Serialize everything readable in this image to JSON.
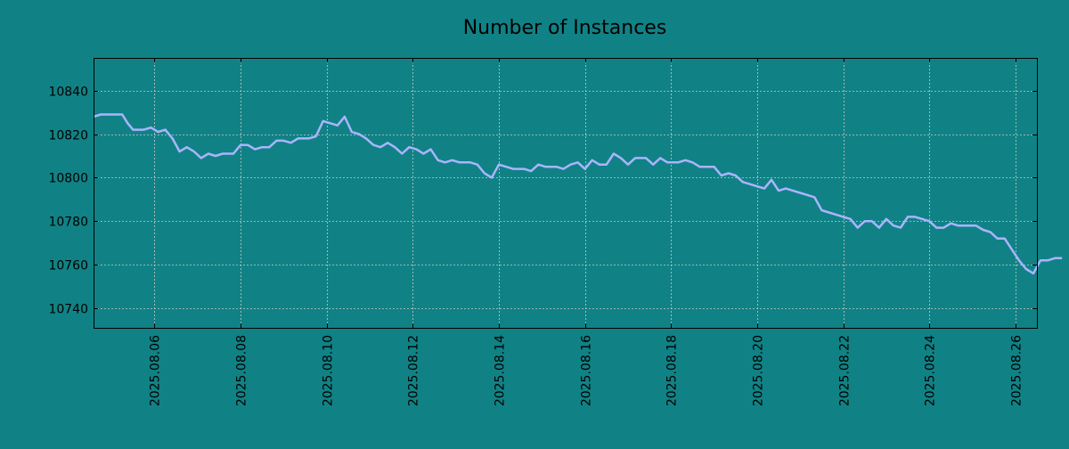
{
  "chart_data": {
    "type": "line",
    "title": "Number of Instances",
    "xlabel": "",
    "ylabel": "",
    "x_tick_labels": [
      "2025.08.06",
      "2025.08.08",
      "2025.08.10",
      "2025.08.12",
      "2025.08.14",
      "2025.08.16",
      "2025.08.18",
      "2025.08.20",
      "2025.08.22",
      "2025.08.24",
      "2025.08.26"
    ],
    "y_tick_labels": [
      "10740",
      "10760",
      "10780",
      "10800",
      "10820",
      "10840"
    ],
    "ylim": [
      10731,
      10855
    ],
    "xlim": [
      "2025.08.04 14:00",
      "2025.08.26 12:00"
    ],
    "grid": true,
    "colors": {
      "background": "#108285",
      "line": "#aab4ff",
      "grid": "#c8c8c8",
      "axis": "#000000"
    },
    "series": [
      {
        "points": [
          [
            "2025.08.04 14:00",
            10828
          ],
          [
            "2025.08.04 18:00",
            10829
          ],
          [
            "2025.08.05 00:00",
            10829
          ],
          [
            "2025.08.05 06:00",
            10829
          ],
          [
            "2025.08.05 09:00",
            10825
          ],
          [
            "2025.08.05 12:00",
            10822
          ],
          [
            "2025.08.05 18:00",
            10822
          ],
          [
            "2025.08.05 22:00",
            10823
          ],
          [
            "2025.08.06 02:00",
            10821
          ],
          [
            "2025.08.06 06:00",
            10822
          ],
          [
            "2025.08.06 10:00",
            10818
          ],
          [
            "2025.08.06 14:00",
            10812
          ],
          [
            "2025.08.06 18:00",
            10814
          ],
          [
            "2025.08.06 22:00",
            10812
          ],
          [
            "2025.08.07 02:00",
            10809
          ],
          [
            "2025.08.07 06:00",
            10811
          ],
          [
            "2025.08.07 10:00",
            10810
          ],
          [
            "2025.08.07 14:00",
            10811
          ],
          [
            "2025.08.07 20:00",
            10811
          ],
          [
            "2025.08.08 00:00",
            10815
          ],
          [
            "2025.08.08 04:00",
            10815
          ],
          [
            "2025.08.08 08:00",
            10813
          ],
          [
            "2025.08.08 12:00",
            10814
          ],
          [
            "2025.08.08 16:00",
            10814
          ],
          [
            "2025.08.08 20:00",
            10817
          ],
          [
            "2025.08.09 00:00",
            10817
          ],
          [
            "2025.08.09 04:00",
            10816
          ],
          [
            "2025.08.09 08:00",
            10818
          ],
          [
            "2025.08.09 14:00",
            10818
          ],
          [
            "2025.08.09 18:00",
            10819
          ],
          [
            "2025.08.09 22:00",
            10826
          ],
          [
            "2025.08.10 02:00",
            10825
          ],
          [
            "2025.08.10 06:00",
            10824
          ],
          [
            "2025.08.10 10:00",
            10828
          ],
          [
            "2025.08.10 14:00",
            10821
          ],
          [
            "2025.08.10 18:00",
            10820
          ],
          [
            "2025.08.10 22:00",
            10818
          ],
          [
            "2025.08.11 02:00",
            10815
          ],
          [
            "2025.08.11 06:00",
            10814
          ],
          [
            "2025.08.11 10:00",
            10816
          ],
          [
            "2025.08.11 14:00",
            10814
          ],
          [
            "2025.08.11 18:00",
            10811
          ],
          [
            "2025.08.11 22:00",
            10814
          ],
          [
            "2025.08.12 02:00",
            10813
          ],
          [
            "2025.08.12 06:00",
            10811
          ],
          [
            "2025.08.12 10:00",
            10813
          ],
          [
            "2025.08.12 14:00",
            10808
          ],
          [
            "2025.08.12 18:00",
            10807
          ],
          [
            "2025.08.12 22:00",
            10808
          ],
          [
            "2025.08.13 02:00",
            10807
          ],
          [
            "2025.08.13 08:00",
            10807
          ],
          [
            "2025.08.13 12:00",
            10806
          ],
          [
            "2025.08.13 16:00",
            10802
          ],
          [
            "2025.08.13 20:00",
            10800
          ],
          [
            "2025.08.14 00:00",
            10806
          ],
          [
            "2025.08.14 04:00",
            10805
          ],
          [
            "2025.08.14 08:00",
            10804
          ],
          [
            "2025.08.14 14:00",
            10804
          ],
          [
            "2025.08.14 18:00",
            10803
          ],
          [
            "2025.08.14 22:00",
            10806
          ],
          [
            "2025.08.15 02:00",
            10805
          ],
          [
            "2025.08.15 08:00",
            10805
          ],
          [
            "2025.08.15 12:00",
            10804
          ],
          [
            "2025.08.15 16:00",
            10806
          ],
          [
            "2025.08.15 20:00",
            10807
          ],
          [
            "2025.08.16 00:00",
            10804
          ],
          [
            "2025.08.16 04:00",
            10808
          ],
          [
            "2025.08.16 08:00",
            10806
          ],
          [
            "2025.08.16 12:00",
            10806
          ],
          [
            "2025.08.16 16:00",
            10811
          ],
          [
            "2025.08.16 20:00",
            10809
          ],
          [
            "2025.08.17 00:00",
            10806
          ],
          [
            "2025.08.17 04:00",
            10809
          ],
          [
            "2025.08.17 10:00",
            10809
          ],
          [
            "2025.08.17 14:00",
            10806
          ],
          [
            "2025.08.17 18:00",
            10809
          ],
          [
            "2025.08.17 22:00",
            10807
          ],
          [
            "2025.08.18 04:00",
            10807
          ],
          [
            "2025.08.18 08:00",
            10808
          ],
          [
            "2025.08.18 12:00",
            10807
          ],
          [
            "2025.08.18 16:00",
            10805
          ],
          [
            "2025.08.19 00:00",
            10805
          ],
          [
            "2025.08.19 04:00",
            10801
          ],
          [
            "2025.08.19 08:00",
            10802
          ],
          [
            "2025.08.19 12:00",
            10801
          ],
          [
            "2025.08.19 16:00",
            10798
          ],
          [
            "2025.08.19 20:00",
            10797
          ],
          [
            "2025.08.20 00:00",
            10796
          ],
          [
            "2025.08.20 04:00",
            10795
          ],
          [
            "2025.08.20 08:00",
            10799
          ],
          [
            "2025.08.20 12:00",
            10794
          ],
          [
            "2025.08.20 16:00",
            10795
          ],
          [
            "2025.08.20 20:00",
            10794
          ],
          [
            "2025.08.21 00:00",
            10793
          ],
          [
            "2025.08.21 04:00",
            10792
          ],
          [
            "2025.08.21 08:00",
            10791
          ],
          [
            "2025.08.21 12:00",
            10785
          ],
          [
            "2025.08.21 16:00",
            10784
          ],
          [
            "2025.08.21 20:00",
            10783
          ],
          [
            "2025.08.22 00:00",
            10782
          ],
          [
            "2025.08.22 04:00",
            10781
          ],
          [
            "2025.08.22 08:00",
            10777
          ],
          [
            "2025.08.22 12:00",
            10780
          ],
          [
            "2025.08.22 16:00",
            10780
          ],
          [
            "2025.08.22 20:00",
            10777
          ],
          [
            "2025.08.23 00:00",
            10781
          ],
          [
            "2025.08.23 04:00",
            10778
          ],
          [
            "2025.08.23 08:00",
            10777
          ],
          [
            "2025.08.23 12:00",
            10782
          ],
          [
            "2025.08.23 16:00",
            10782
          ],
          [
            "2025.08.23 20:00",
            10781
          ],
          [
            "2025.08.24 00:00",
            10780
          ],
          [
            "2025.08.24 04:00",
            10777
          ],
          [
            "2025.08.24 08:00",
            10777
          ],
          [
            "2025.08.24 12:00",
            10779
          ],
          [
            "2025.08.24 16:00",
            10778
          ],
          [
            "2025.08.24 20:00",
            10778
          ],
          [
            "2025.08.25 02:00",
            10778
          ],
          [
            "2025.08.25 06:00",
            10776
          ],
          [
            "2025.08.25 10:00",
            10775
          ],
          [
            "2025.08.25 14:00",
            10772
          ],
          [
            "2025.08.25 18:00",
            10772
          ],
          [
            "2025.08.25 22:00",
            10767
          ],
          [
            "2025.08.26 02:00",
            10762
          ],
          [
            "2025.08.26 06:00",
            10758
          ],
          [
            "2025.08.26 10:00",
            10756
          ],
          [
            "2025.08.26 14:00",
            10762
          ],
          [
            "2025.08.26 18:00",
            10762
          ],
          [
            "2025.08.26 22:00",
            10763
          ],
          [
            "2025.08.27 02:00",
            10763
          ]
        ]
      }
    ]
  }
}
